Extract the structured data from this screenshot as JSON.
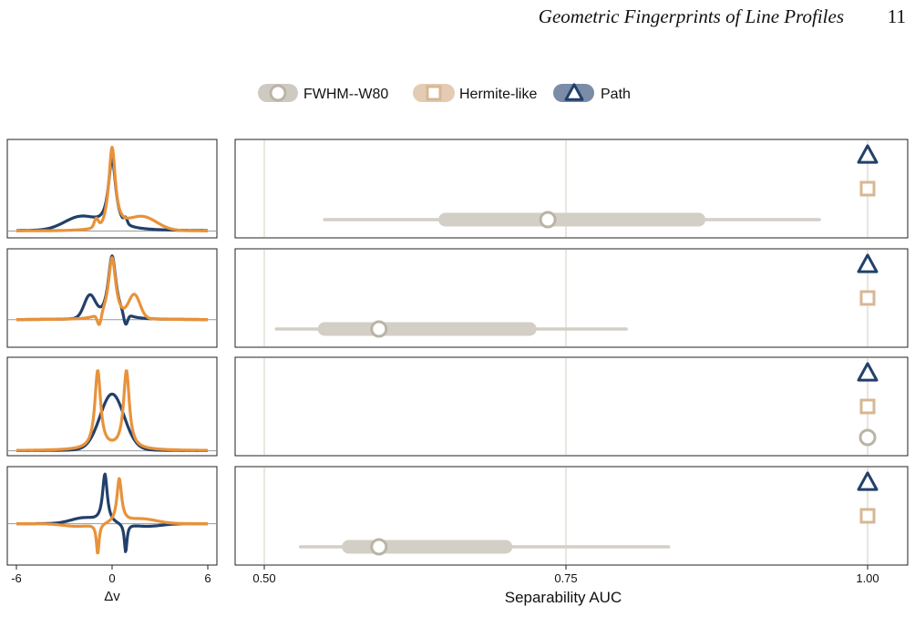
{
  "header": {
    "title": "Geometric Fingerprints of Line Profiles",
    "page_number": "11"
  },
  "colors": {
    "navy": "#22406a",
    "orange": "#e8923a",
    "tan": "#d7b793",
    "gray": "#bab4a6",
    "grayband": "#d3cfc6",
    "gridline": "#d9d4c9"
  },
  "chart_data": {
    "type": "scatter",
    "legend": {
      "placement": "top-center",
      "entries": [
        {
          "label": "FWHM--W80",
          "marker": "circle",
          "color": "#bab4a6"
        },
        {
          "label": "Hermite-like",
          "marker": "square",
          "color": "#d7b793"
        },
        {
          "label": "Path",
          "marker": "triangle",
          "color": "#22406a"
        }
      ]
    },
    "profiles": {
      "xlabel": "Δv",
      "xlim": [
        -6,
        6
      ],
      "xticks": [
        "-6",
        "0",
        "6"
      ],
      "series_colors": [
        "#22406a",
        "#e8923a"
      ]
    },
    "auc": {
      "xlabel": "Separability AUC",
      "xlim": [
        0.44,
        1.03
      ],
      "xticks": [
        0.5,
        0.75,
        1.0
      ],
      "xtick_labels": [
        "0.50",
        "0.75",
        "1.00"
      ],
      "grid": true,
      "rows": [
        {
          "path": 1.0,
          "hermite": 1.0,
          "fwhm": 0.735,
          "fwhm_ci50": [
            0.65,
            0.86
          ],
          "fwhm_ci95": [
            0.55,
            0.96
          ]
        },
        {
          "path": 1.0,
          "hermite": 1.0,
          "fwhm": 0.595,
          "fwhm_ci50": [
            0.55,
            0.72
          ],
          "fwhm_ci95": [
            0.51,
            0.8
          ]
        },
        {
          "path": 1.0,
          "hermite": 1.0,
          "fwhm": 1.0,
          "fwhm_ci50": null,
          "fwhm_ci95": null
        },
        {
          "path": 1.0,
          "hermite": 1.0,
          "fwhm": 0.595,
          "fwhm_ci50": [
            0.57,
            0.7
          ],
          "fwhm_ci95": [
            0.53,
            0.835
          ]
        }
      ]
    }
  }
}
